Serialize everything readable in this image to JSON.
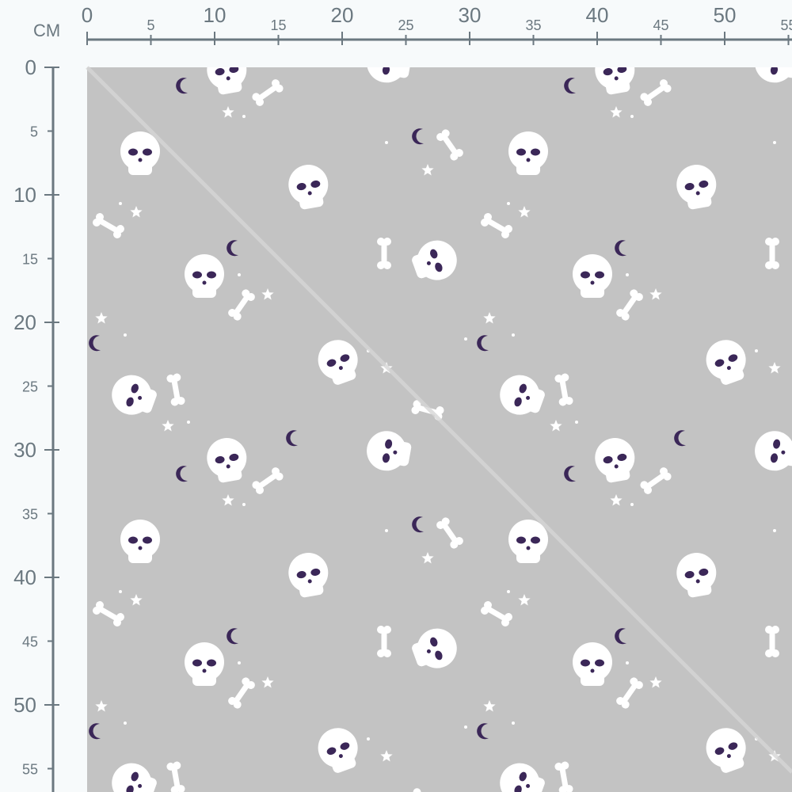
{
  "ruler": {
    "unit": "CM",
    "top_labels_major": [
      "0",
      "10",
      "20",
      "30",
      "40",
      "50"
    ],
    "top_labels_minor": [
      "5",
      "15",
      "25",
      "35",
      "45",
      "55"
    ],
    "left_labels_major": [
      "0",
      "10",
      "20",
      "30",
      "40",
      "50"
    ],
    "left_labels_minor": [
      "5",
      "15",
      "25",
      "35",
      "45",
      "55"
    ]
  },
  "fabric": {
    "pattern": "skulls, bones, moons and stars",
    "colors": {
      "background": "#c3c3c3",
      "motif": "#ffffff",
      "accent": "#3b2758",
      "ruler": "#6b7880",
      "fold_line": "#d6d6d6"
    }
  }
}
